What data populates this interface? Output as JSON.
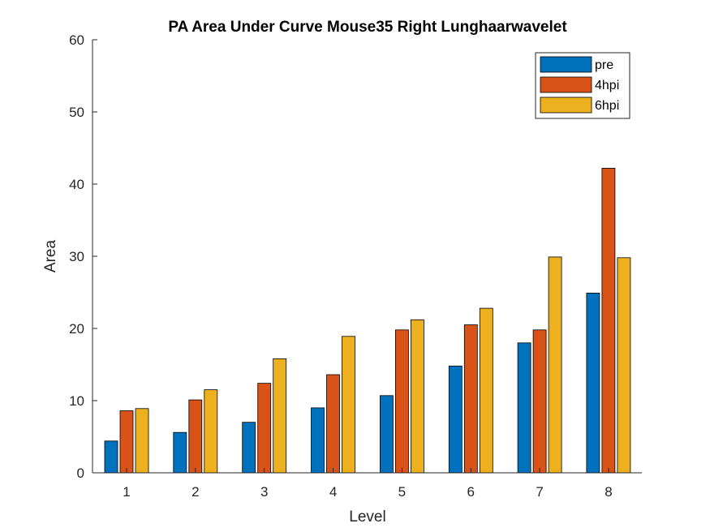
{
  "chart_data": {
    "type": "bar",
    "title": "PA Area Under Curve Mouse35 Right Lunghaarwavelet",
    "xlabel": "Level",
    "ylabel": "Area",
    "categories": [
      "1",
      "2",
      "3",
      "4",
      "5",
      "6",
      "7",
      "8"
    ],
    "ylim": [
      0,
      60
    ],
    "yticks": [
      "0",
      "10",
      "20",
      "30",
      "40",
      "50",
      "60"
    ],
    "grid": false,
    "legend_position": "top-right",
    "series": [
      {
        "name": "pre",
        "color": "#0072BD",
        "values": [
          4.4,
          5.6,
          7.0,
          9.0,
          10.7,
          14.8,
          18.0,
          24.9
        ]
      },
      {
        "name": "4hpi",
        "color": "#D95319",
        "values": [
          8.6,
          10.1,
          12.4,
          13.6,
          19.8,
          20.5,
          19.8,
          42.2
        ]
      },
      {
        "name": "6hpi",
        "color": "#EDB120",
        "values": [
          8.9,
          11.5,
          15.8,
          18.9,
          21.2,
          22.8,
          29.9,
          29.8
        ]
      }
    ]
  }
}
